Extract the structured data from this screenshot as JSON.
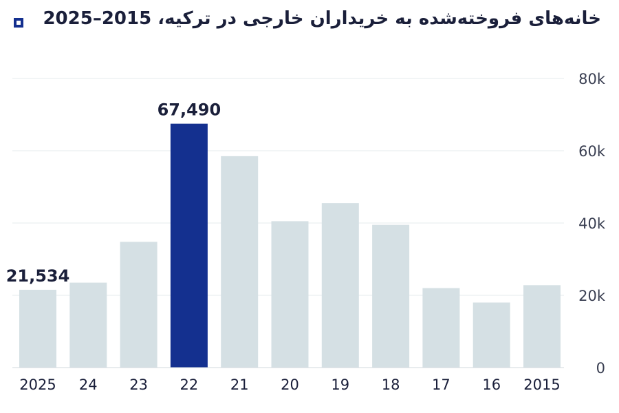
{
  "chart_data": {
    "type": "bar",
    "title": "خانه‌های فروخته‌شده به خریداران خارجی در ترکیه، 2015–2025",
    "categories": [
      "2025",
      "24",
      "23",
      "22",
      "21",
      "20",
      "19",
      "18",
      "17",
      "16",
      "2015"
    ],
    "values": [
      21534,
      23500,
      34800,
      67490,
      58500,
      40500,
      45500,
      39500,
      22000,
      18000,
      22800
    ],
    "data_labels": {
      "0": "21,534",
      "3": "67,490"
    },
    "highlight_index": 3,
    "ylim": [
      0,
      80000
    ],
    "yticks": [
      0,
      20000,
      40000,
      60000,
      80000
    ],
    "ytick_labels": [
      "0",
      "20k",
      "40k",
      "60k",
      "80k"
    ],
    "y_axis_side": "right",
    "grid": true,
    "colors": {
      "bar": "#d5e0e4",
      "highlight": "#14308f",
      "grid": "#e6ebee",
      "text": "#1a1f3a",
      "axis_text": "#3a3f52"
    }
  }
}
